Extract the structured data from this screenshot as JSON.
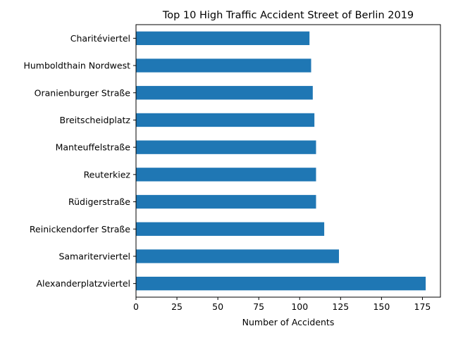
{
  "chart_data": {
    "type": "bar",
    "orientation": "horizontal",
    "title": "Top 10 High Traffic Accident Street of Berlin 2019",
    "xlabel": "Number of Accidents",
    "ylabel": "",
    "categories": [
      "Alexanderplatzviertel",
      "Samariterviertel",
      "Reinickendorfer Straße",
      "Rüdigerstraße",
      "Reuterkiez",
      "Manteuffelstraße",
      "Breitscheidplatz",
      "Oranienburger Straße",
      "Humboldthain Nordwest",
      "Charitéviertel"
    ],
    "values": [
      177,
      124,
      115,
      110,
      110,
      110,
      109,
      108,
      107,
      106
    ],
    "xlim": [
      0,
      186
    ],
    "xticks": [
      0,
      25,
      50,
      75,
      100,
      125,
      150,
      175
    ],
    "grid": false,
    "legend": "none",
    "bar_color": "#1f77b4"
  }
}
